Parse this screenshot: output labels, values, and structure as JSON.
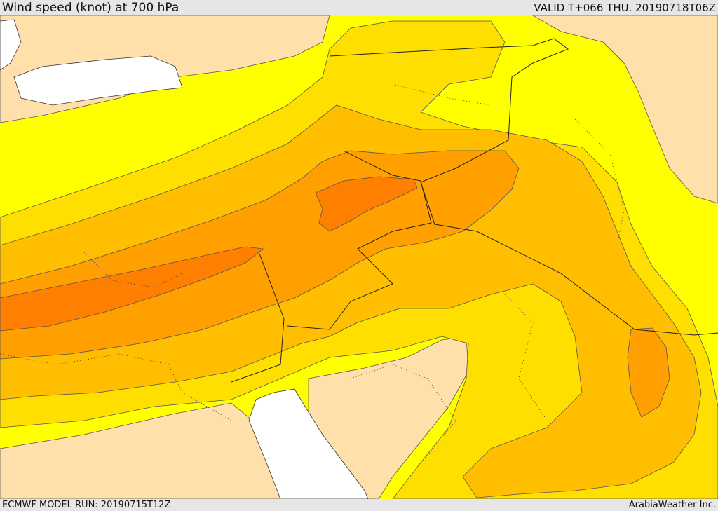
{
  "header": {
    "title": "Wind speed (knot) at 700 hPa",
    "valid": "VALID T+066 THU. 20190718T06Z"
  },
  "footer": {
    "model_run": "ECMWF MODEL RUN: 20190715T12Z",
    "credit": "ArabiaWeather Inc."
  },
  "colors": {
    "sea_white": "#ffffff",
    "level_lowest": "#ffdfaa",
    "level_1": "#ffff00",
    "level_2": "#ffdf00",
    "level_3": "#ffbf00",
    "level_4": "#ff9f00",
    "level_5": "#ff7f00"
  }
}
